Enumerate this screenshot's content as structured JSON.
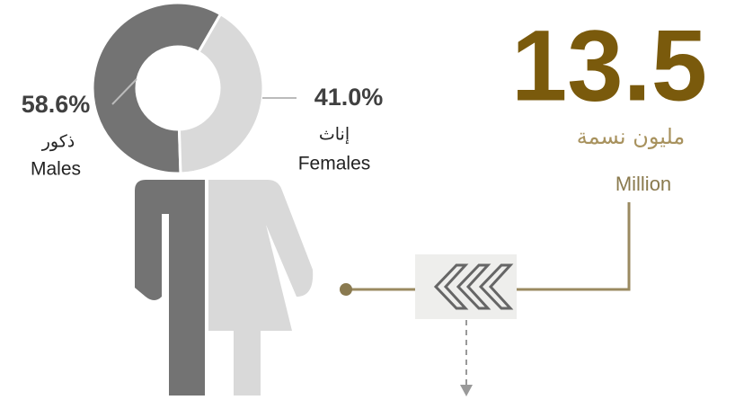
{
  "chart_data": {
    "type": "donut",
    "categories": [
      "Males",
      "Females"
    ],
    "arabic_labels": [
      "ذكور",
      "إناث"
    ],
    "values": [
      58.6,
      41.0
    ],
    "value_labels": [
      "58.6%",
      "41.0%"
    ],
    "colors": [
      "#737373",
      "#d9d9d9"
    ]
  },
  "total": {
    "value": 13.5,
    "arabic_unit": "مليون نسمة",
    "unit": "Million"
  }
}
